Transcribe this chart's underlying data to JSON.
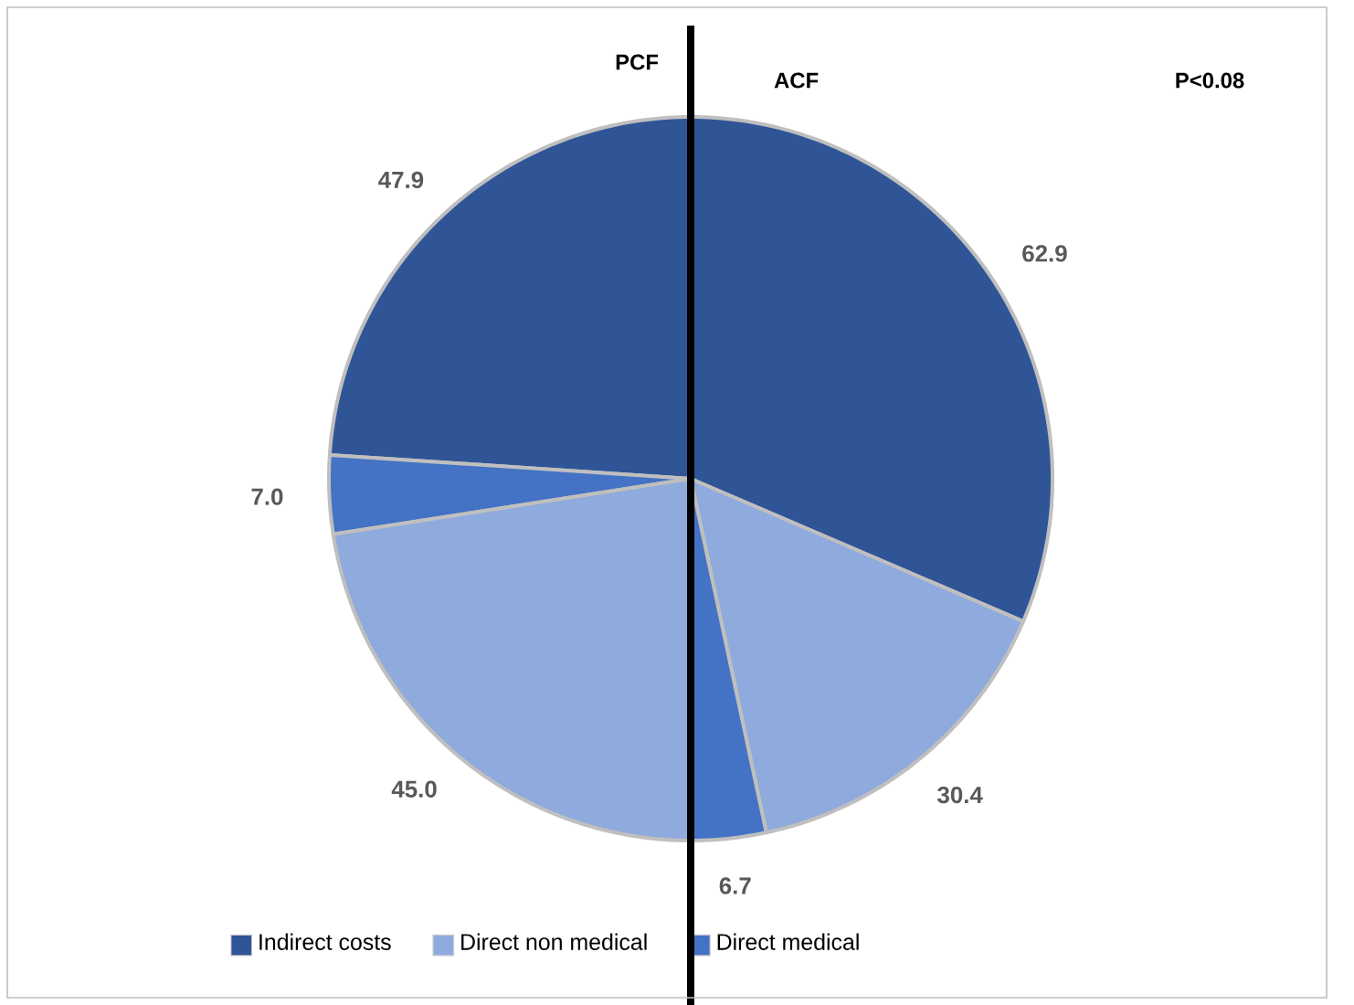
{
  "chart_data": [
    {
      "type": "pie",
      "title": "PCF",
      "categories": [
        null,
        null,
        null
      ],
      "values": [
        47.9,
        7.0,
        45.0
      ],
      "value_labels": [
        "47.9",
        "7.0",
        "45.0"
      ],
      "colors": [
        "#2f5597",
        "#4472c4",
        "#8faadc"
      ]
    },
    {
      "type": "pie",
      "title": "ACF",
      "categories": [
        "Indirect costs",
        "Direct non medical",
        "Direct medical"
      ],
      "values": [
        62.9,
        30.4,
        6.7
      ],
      "colors": [
        "#2f5597",
        "#8faadc",
        "#4472c4"
      ],
      "data_labels": true,
      "legend": "bottom",
      "annotations": [
        "P<0.08"
      ]
    }
  ]
}
